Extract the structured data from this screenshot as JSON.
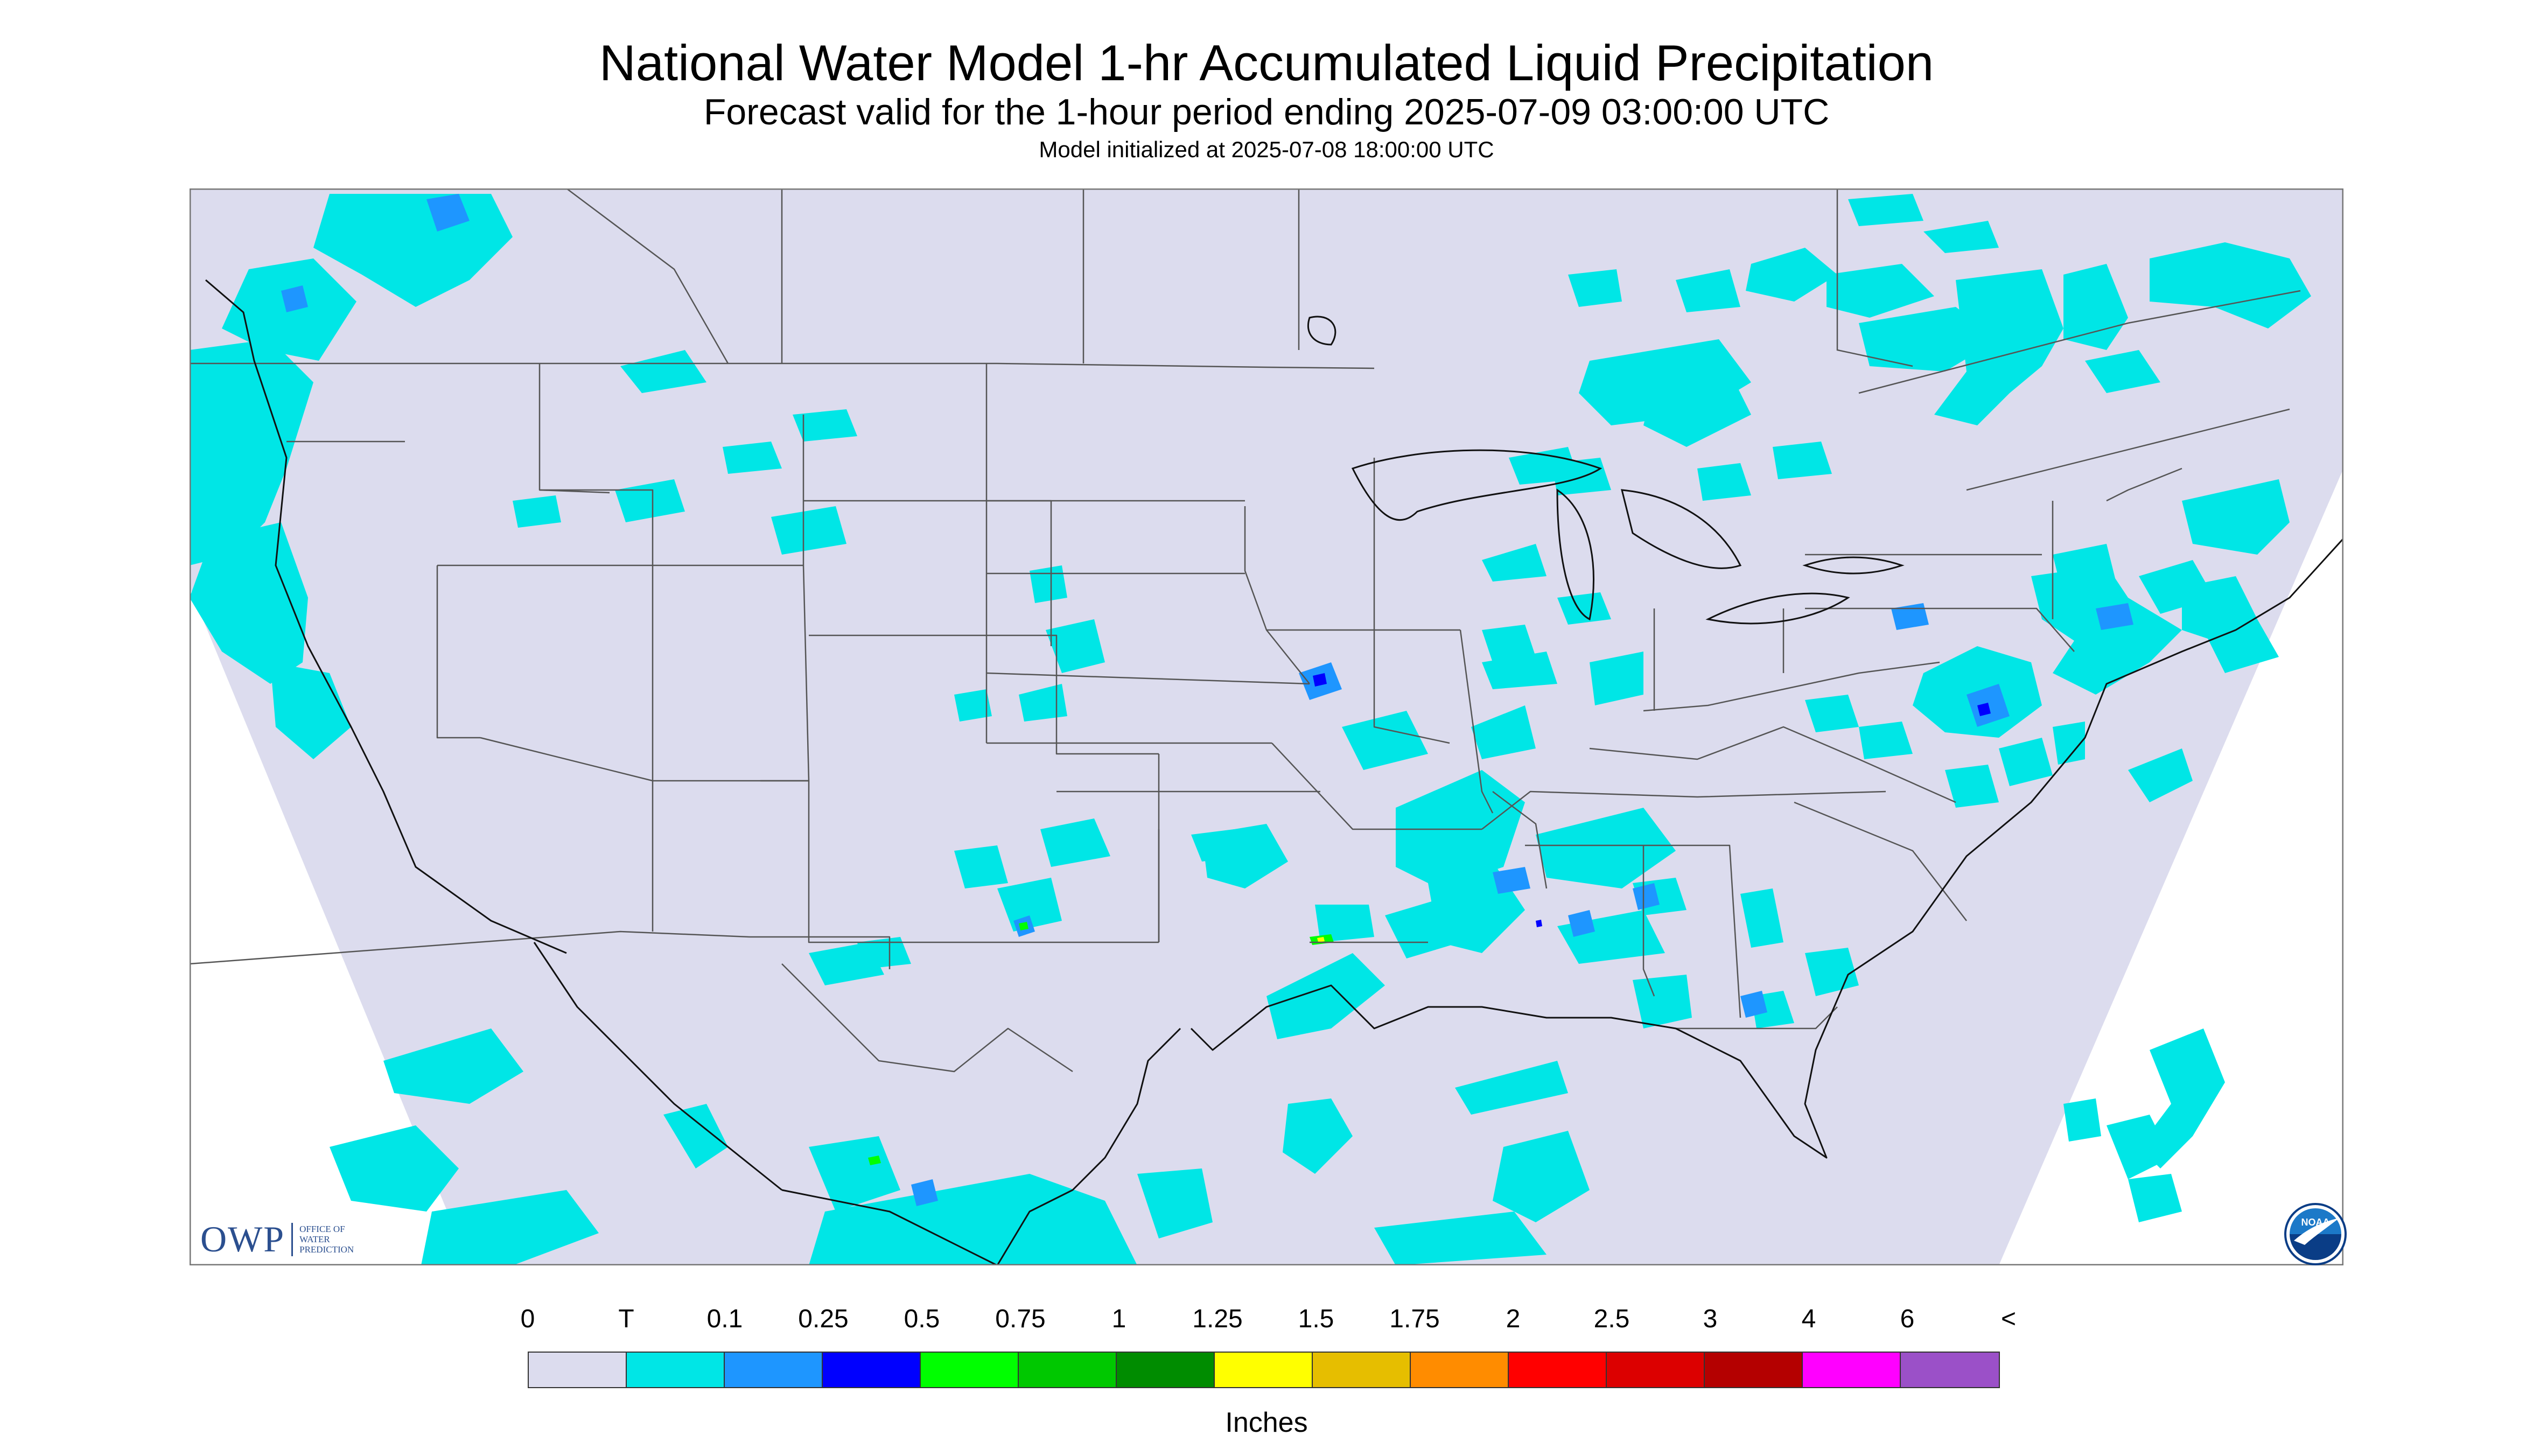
{
  "title": "National Water Model 1-hr Accumulated Liquid Precipitation",
  "subtitle": "Forecast valid for the 1-hour period ending 2025-07-09 03:00:00 UTC",
  "init_line": "Model initialized at 2025-07-08 18:00:00 UTC",
  "logo_left": {
    "mark": "OWP",
    "lines": [
      "OFFICE OF",
      "WATER",
      "PREDICTION"
    ]
  },
  "logo_right": {
    "text": "NOAA",
    "colors": {
      "sky": "#1c79c8",
      "sea": "#0a3d86",
      "bird": "#ffffff"
    }
  },
  "colors": {
    "map_background": "#dcdcee",
    "border_lines": "#555555",
    "coast_lines": "#000000",
    "panel_border": "#777777"
  },
  "legend": {
    "labels": [
      "0",
      "T",
      "0.1",
      "0.25",
      "0.5",
      "0.75",
      "1",
      "1.25",
      "1.5",
      "1.75",
      "2",
      "2.5",
      "3",
      "4",
      "6",
      "<"
    ],
    "colors": [
      "#dcdcee",
      "#00e6e6",
      "#1e96ff",
      "#0000ff",
      "#00ff00",
      "#00c800",
      "#008c00",
      "#ffff00",
      "#e6be00",
      "#ff8c00",
      "#ff0000",
      "#dc0000",
      "#b40000",
      "#ff00ff",
      "#9b50c8"
    ],
    "units": "Inches"
  }
}
